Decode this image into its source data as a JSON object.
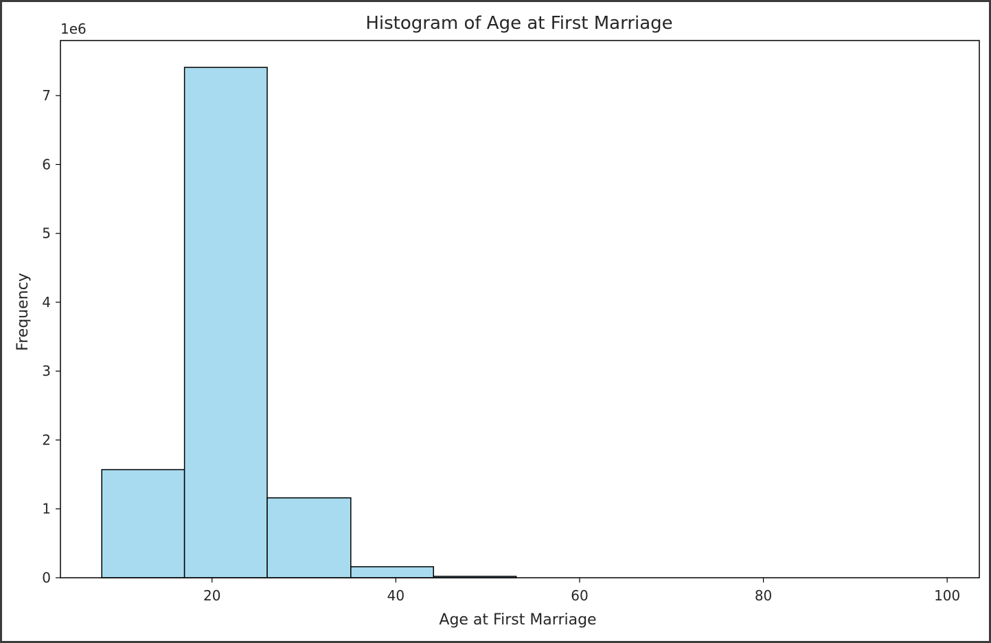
{
  "chart_data": {
    "type": "bar",
    "title": "Histogram of Age at First Marriage",
    "xlabel": "Age at First Marriage",
    "ylabel": "Frequency",
    "y_offset_label": "1e6",
    "y_scale": 1000000,
    "xlim": [
      3.5,
      103.5
    ],
    "ylim": [
      0,
      7.8
    ],
    "x_ticks": [
      20,
      40,
      60,
      80,
      100
    ],
    "y_ticks": [
      0,
      1,
      2,
      3,
      4,
      5,
      6,
      7
    ],
    "bins": [
      {
        "start": 8.0,
        "end": 17.0,
        "value": 1.57
      },
      {
        "start": 17.0,
        "end": 26.0,
        "value": 7.41
      },
      {
        "start": 26.0,
        "end": 35.1,
        "value": 1.16
      },
      {
        "start": 35.1,
        "end": 44.1,
        "value": 0.16
      },
      {
        "start": 44.1,
        "end": 53.1,
        "value": 0.02
      },
      {
        "start": 53.1,
        "end": 62.2,
        "value": 0.0
      },
      {
        "start": 62.2,
        "end": 71.2,
        "value": 0.0
      },
      {
        "start": 71.2,
        "end": 80.2,
        "value": 0.0
      },
      {
        "start": 80.2,
        "end": 89.2,
        "value": 0.0
      },
      {
        "start": 89.2,
        "end": 98.3,
        "value": 0.0
      }
    ],
    "bar_color": "#a8dbef",
    "edge_color": "#000000",
    "grid": false,
    "legend": "none"
  }
}
